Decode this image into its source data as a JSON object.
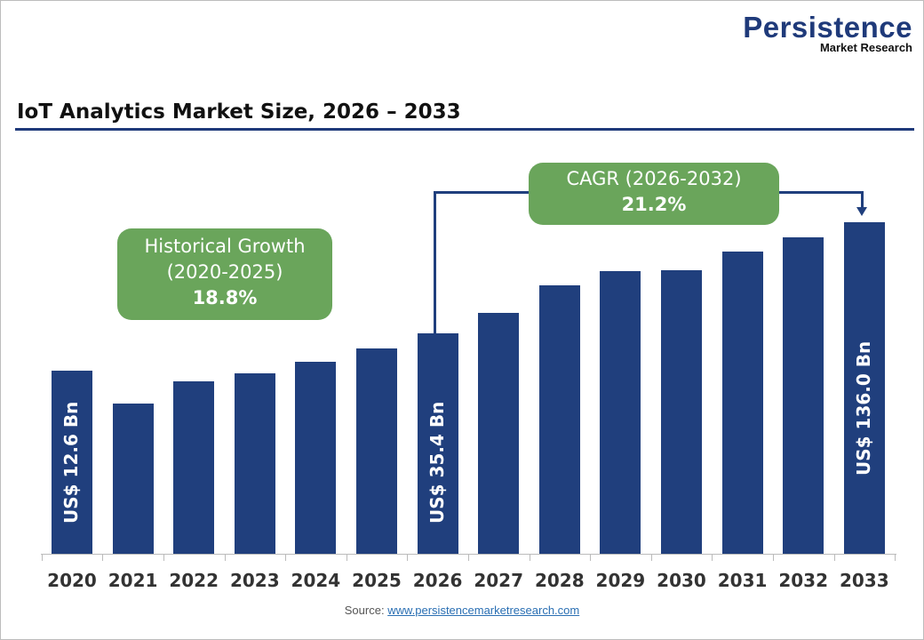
{
  "logo": {
    "line1": "Persistence",
    "line2": "Market Research"
  },
  "chart_data": {
    "type": "bar",
    "title": "IoT Analytics Market Size, 2026 – 2033",
    "categories": [
      "2020",
      "2021",
      "2022",
      "2023",
      "2024",
      "2025",
      "2026",
      "2027",
      "2028",
      "2029",
      "2030",
      "2031",
      "2032",
      "2033"
    ],
    "values": [
      12.6,
      null,
      null,
      null,
      null,
      null,
      35.4,
      null,
      null,
      null,
      null,
      null,
      null,
      136.0
    ],
    "data_labels": {
      "2020": "US$ 12.6 Bn",
      "2026": "US$ 35.4 Bn",
      "2033": "US$ 136.0 Bn"
    },
    "unit": "US$ Bn",
    "bar_color": "#203f7d",
    "grid": false,
    "annotations": {
      "historical": {
        "line1": "Historical Growth",
        "line2": "(2020-2025)",
        "value": "18.8%"
      },
      "cagr": {
        "line1": "CAGR (2026-2032)",
        "value": "21.2%"
      },
      "callout_color": "#6aa55b"
    }
  },
  "source": {
    "label": "Source:",
    "link": "www.persistencemarketresearch.com"
  }
}
